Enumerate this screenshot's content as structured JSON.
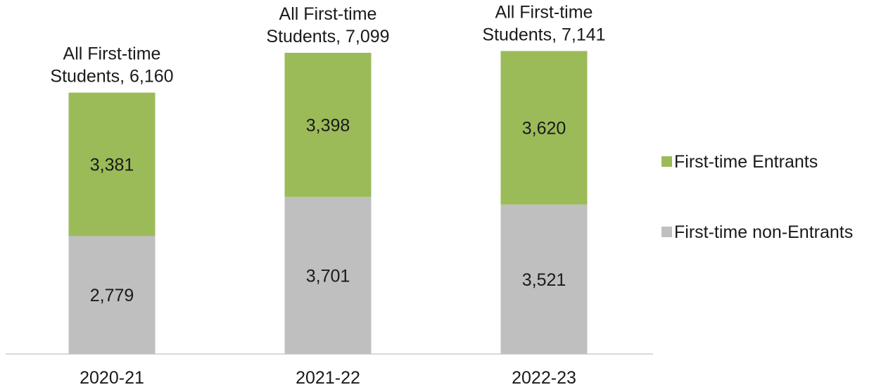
{
  "chart_data": {
    "type": "bar",
    "stacked": true,
    "categories": [
      "2020-21",
      "2021-22",
      "2022-23"
    ],
    "series": [
      {
        "name": "First-time non-Entrants",
        "values": [
          2779,
          3701,
          3521
        ],
        "color": "#bfbfbf"
      },
      {
        "name": "First-time Entrants",
        "values": [
          3381,
          3398,
          3620
        ],
        "color": "#9bbb59"
      }
    ],
    "totals": {
      "label_line1": "All First-time",
      "label_line2_prefix": "Students, ",
      "values": [
        6160,
        7099,
        7141
      ],
      "value_text": [
        "6,160",
        "7,099",
        "7,141"
      ]
    },
    "data_labels": [
      [
        "2,779",
        "3,701",
        "3,521"
      ],
      [
        "3,381",
        "3,398",
        "3,620"
      ]
    ],
    "ylim": [
      0,
      8000
    ],
    "grid": false,
    "legend_position": "right",
    "title": "",
    "xlabel": "",
    "ylabel": ""
  }
}
